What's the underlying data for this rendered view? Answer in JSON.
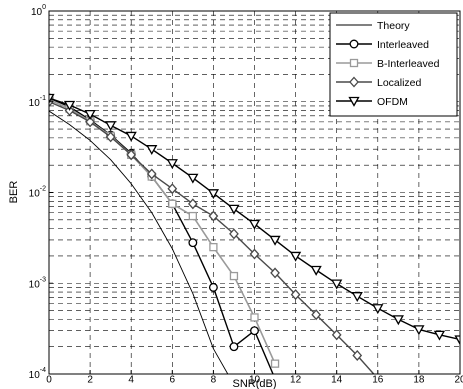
{
  "chart_data": {
    "type": "line",
    "title": "",
    "xlabel": "SNR(dB)",
    "ylabel": "BER",
    "xlim": [
      0,
      20
    ],
    "ylim": [
      0.0001,
      1
    ],
    "y_scale": "log",
    "grid": true,
    "legend_position": "top-right",
    "x_ticks": [
      "0",
      "2",
      "4",
      "6",
      "8",
      "10",
      "12",
      "14",
      "16",
      "18",
      "20"
    ],
    "y_ticks": [
      {
        "base": "10",
        "exp": "-4"
      },
      {
        "base": "10",
        "exp": "-3"
      },
      {
        "base": "10",
        "exp": "-2"
      },
      {
        "base": "10",
        "exp": "-1"
      },
      {
        "base": "10",
        "exp": "0"
      }
    ],
    "series": [
      {
        "name": "Theory",
        "marker": "none",
        "color": "#000000",
        "stroke_width": 0.9,
        "x": [
          0,
          1,
          2,
          3,
          4,
          5,
          6,
          7,
          8,
          8.7
        ],
        "y": [
          0.079,
          0.056,
          0.0375,
          0.023,
          0.0125,
          0.006,
          0.0024,
          0.00077,
          0.00019,
          0.0001
        ]
      },
      {
        "name": "Interleaved",
        "marker": "circle",
        "color": "#000000",
        "stroke_width": 1.4,
        "x": [
          0,
          1,
          2,
          3,
          4,
          5,
          6,
          7,
          8,
          9,
          10,
          10.9
        ],
        "y": [
          0.11,
          0.088,
          0.063,
          0.043,
          0.027,
          0.015,
          0.0075,
          0.0028,
          0.0009,
          0.0002,
          0.0003,
          0.0001
        ]
      },
      {
        "name": "B-Interleaved",
        "marker": "square",
        "color": "#9a9a9a",
        "stroke_width": 1.6,
        "x": [
          0,
          1,
          2,
          3,
          4,
          5,
          6,
          7,
          8,
          9,
          10,
          11
        ],
        "y": [
          0.105,
          0.084,
          0.061,
          0.042,
          0.026,
          0.015,
          0.0075,
          0.0055,
          0.0025,
          0.0012,
          0.00042,
          0.00013
        ]
      },
      {
        "name": "Localized",
        "marker": "diamond",
        "color": "#4a4a4a",
        "stroke_width": 1.4,
        "x": [
          0,
          1,
          2,
          3,
          4,
          5,
          6,
          7,
          8,
          9,
          10,
          11,
          12,
          13,
          14,
          15,
          15.8
        ],
        "y": [
          0.1,
          0.08,
          0.06,
          0.041,
          0.026,
          0.016,
          0.011,
          0.0075,
          0.0055,
          0.0035,
          0.0021,
          0.0013,
          0.00075,
          0.00045,
          0.00027,
          0.00016,
          0.0001
        ]
      },
      {
        "name": "OFDM",
        "marker": "triangle-down",
        "color": "#000000",
        "stroke_width": 1.4,
        "x": [
          0,
          1,
          2,
          3,
          4,
          5,
          6,
          7,
          8,
          9,
          10,
          11,
          12,
          13,
          14,
          15,
          16,
          17,
          18,
          19,
          20
        ],
        "y": [
          0.11,
          0.092,
          0.073,
          0.055,
          0.042,
          0.03,
          0.021,
          0.0145,
          0.0098,
          0.0066,
          0.0045,
          0.003,
          0.002,
          0.0014,
          0.00099,
          0.00072,
          0.00053,
          0.0004,
          0.00031,
          0.00027,
          0.00024
        ]
      }
    ]
  }
}
